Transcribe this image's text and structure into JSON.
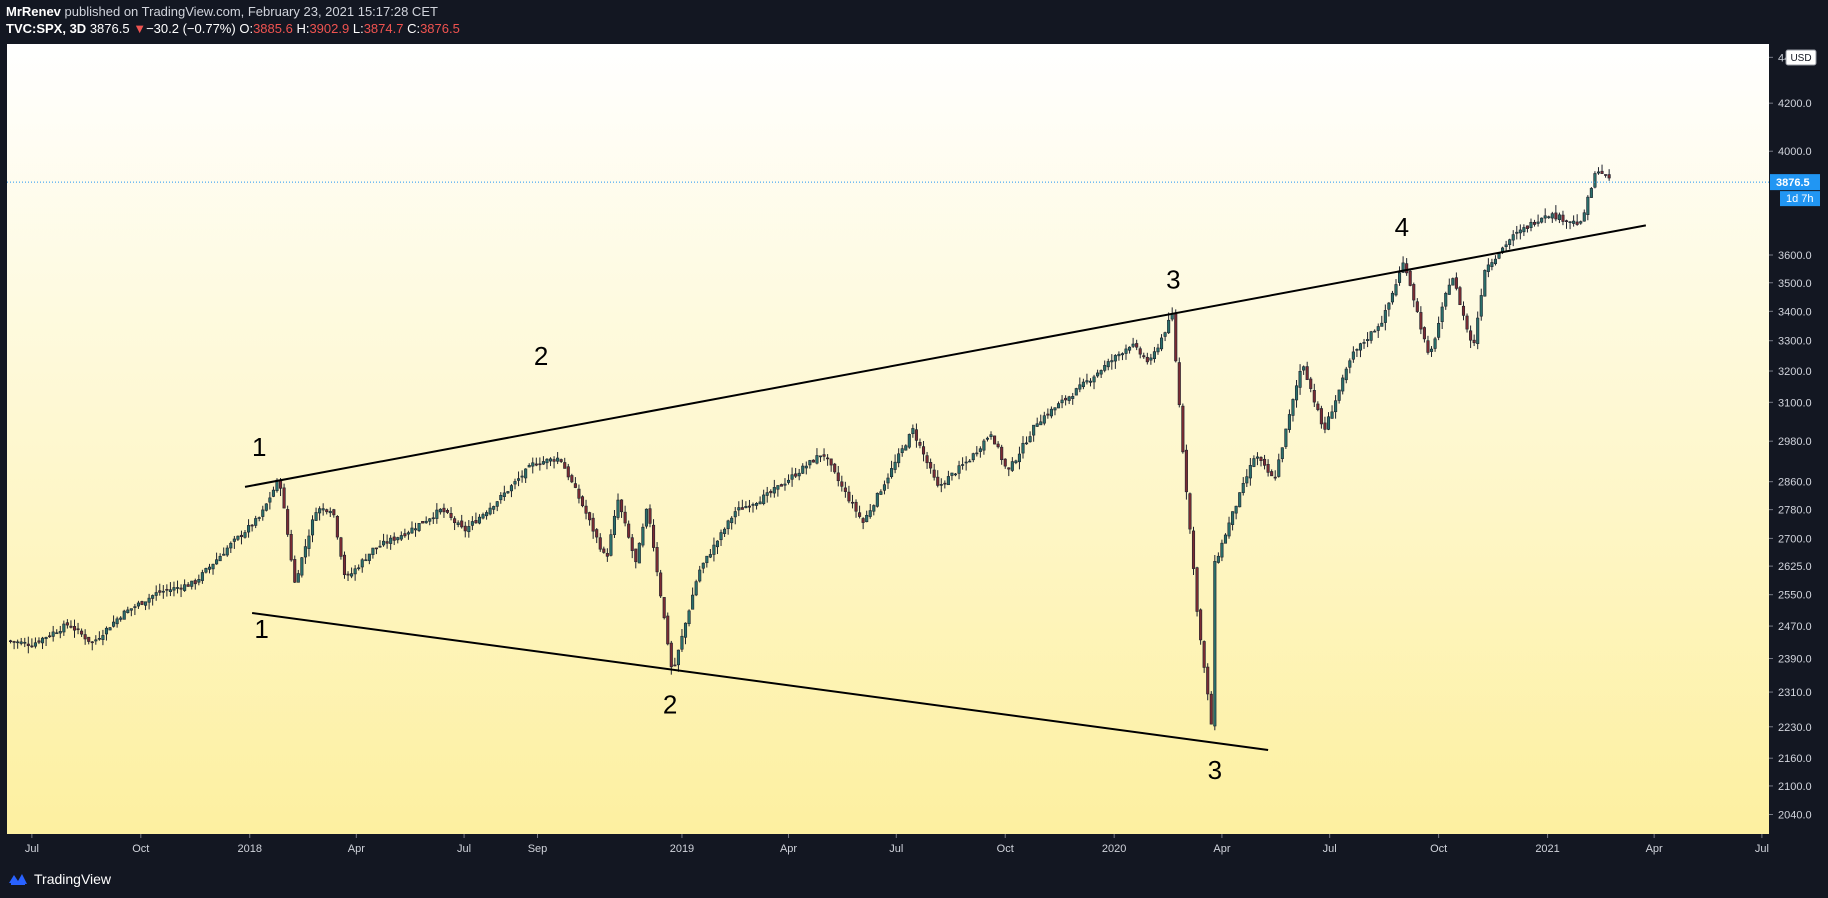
{
  "header": {
    "author": "MrRenev",
    "published_text": "published on TradingView.com, February 23, 2021 15:17:28 CET",
    "symbol": "TVC:SPX, 3D",
    "last": "3876.5",
    "change_arrow": "▼",
    "change": "−30.2 (−0.77%)",
    "o_label": "O:",
    "o_value": "3885.6",
    "h_label": "H:",
    "h_value": "3902.9",
    "l_label": "L:",
    "l_value": "3874.7",
    "c_label": "C:",
    "c_value": "3876.5"
  },
  "footer": {
    "brand": "TradingView"
  },
  "colors": {
    "up": "#26a69a",
    "down": "#ef5350",
    "candle_body_down": "#7a2b33",
    "candle_body_up": "#2a6f6a",
    "bg_top": "#ffffff",
    "bg_bottom": "#fdf0a0",
    "price_tag": "#2196f3",
    "axis_bg": "#131722",
    "axis_text": "#d1d4dc"
  },
  "chart_data": {
    "type": "candlestick",
    "symbol": "TVC:SPX",
    "interval": "3D",
    "y_scale": "log",
    "ylim": [
      2000,
      4460
    ],
    "y_ticks": [
      "2040.0",
      "2100.0",
      "2160.0",
      "2230.0",
      "2310.0",
      "2390.0",
      "2470.0",
      "2550.0",
      "2625.0",
      "2700.0",
      "2780.0",
      "2860.0",
      "2980.0",
      "3100.0",
      "3200.0",
      "3300.0",
      "3400.0",
      "3500.0",
      "3600.0",
      "4000.0",
      "4200.0",
      "4400.0"
    ],
    "currency": "USD",
    "last_price": "3876.5",
    "countdown": "1d 7h",
    "x_range": [
      "2017-06-10",
      "2021-07-07"
    ],
    "x_ticks": [
      {
        "label": "Jul",
        "date": "2017-07-01"
      },
      {
        "label": "Oct",
        "date": "2017-10-01"
      },
      {
        "label": "2018",
        "date": "2018-01-01"
      },
      {
        "label": "Apr",
        "date": "2018-04-01"
      },
      {
        "label": "Jul",
        "date": "2018-07-01"
      },
      {
        "label": "Sep",
        "date": "2018-09-01"
      },
      {
        "label": "2019",
        "date": "2019-01-01"
      },
      {
        "label": "Apr",
        "date": "2019-04-01"
      },
      {
        "label": "Jul",
        "date": "2019-07-01"
      },
      {
        "label": "Oct",
        "date": "2019-10-01"
      },
      {
        "label": "2020",
        "date": "2020-01-01"
      },
      {
        "label": "Apr",
        "date": "2020-04-01"
      },
      {
        "label": "Jul",
        "date": "2020-07-01"
      },
      {
        "label": "Oct",
        "date": "2020-10-01"
      },
      {
        "label": "2021",
        "date": "2021-01-01"
      },
      {
        "label": "Apr",
        "date": "2021-04-01"
      },
      {
        "label": "Jul",
        "date": "2021-07-01"
      }
    ],
    "series_anchors": [
      {
        "date": "2017-06-10",
        "close": 2433
      },
      {
        "date": "2017-07-01",
        "close": 2425
      },
      {
        "date": "2017-08-01",
        "close": 2475
      },
      {
        "date": "2017-08-21",
        "close": 2428
      },
      {
        "date": "2017-09-15",
        "close": 2500
      },
      {
        "date": "2017-10-15",
        "close": 2555
      },
      {
        "date": "2017-11-15",
        "close": 2580
      },
      {
        "date": "2017-12-15",
        "close": 2680
      },
      {
        "date": "2018-01-10",
        "close": 2760
      },
      {
        "date": "2018-01-26",
        "close": 2872
      },
      {
        "date": "2018-02-08",
        "close": 2581
      },
      {
        "date": "2018-02-26",
        "close": 2780
      },
      {
        "date": "2018-03-12",
        "close": 2783
      },
      {
        "date": "2018-03-23",
        "close": 2588
      },
      {
        "date": "2018-04-15",
        "close": 2670
      },
      {
        "date": "2018-05-15",
        "close": 2720
      },
      {
        "date": "2018-06-12",
        "close": 2780
      },
      {
        "date": "2018-07-01",
        "close": 2720
      },
      {
        "date": "2018-08-01",
        "close": 2815
      },
      {
        "date": "2018-08-29",
        "close": 2914
      },
      {
        "date": "2018-09-20",
        "close": 2930
      },
      {
        "date": "2018-10-10",
        "close": 2785
      },
      {
        "date": "2018-10-29",
        "close": 2641
      },
      {
        "date": "2018-11-08",
        "close": 2806
      },
      {
        "date": "2018-11-23",
        "close": 2633
      },
      {
        "date": "2018-12-03",
        "close": 2790
      },
      {
        "date": "2018-12-24",
        "close": 2351
      },
      {
        "date": "2019-01-15",
        "close": 2610
      },
      {
        "date": "2019-02-15",
        "close": 2775
      },
      {
        "date": "2019-03-15",
        "close": 2822
      },
      {
        "date": "2019-04-30",
        "close": 2945
      },
      {
        "date": "2019-05-15",
        "close": 2850
      },
      {
        "date": "2019-06-03",
        "close": 2744
      },
      {
        "date": "2019-07-15",
        "close": 3014
      },
      {
        "date": "2019-08-05",
        "close": 2844
      },
      {
        "date": "2019-09-01",
        "close": 2926
      },
      {
        "date": "2019-09-19",
        "close": 3006
      },
      {
        "date": "2019-10-03",
        "close": 2887
      },
      {
        "date": "2019-10-28",
        "close": 3039
      },
      {
        "date": "2019-12-01",
        "close": 3140
      },
      {
        "date": "2020-01-15",
        "close": 3289
      },
      {
        "date": "2020-01-31",
        "close": 3225
      },
      {
        "date": "2020-02-19",
        "close": 3386
      },
      {
        "date": "2020-02-28",
        "close": 2954
      },
      {
        "date": "2020-03-12",
        "close": 2480
      },
      {
        "date": "2020-03-23",
        "close": 2237
      },
      {
        "date": "2020-03-26",
        "close": 2630
      },
      {
        "date": "2020-04-08",
        "close": 2750
      },
      {
        "date": "2020-04-29",
        "close": 2939
      },
      {
        "date": "2020-05-15",
        "close": 2863
      },
      {
        "date": "2020-06-08",
        "close": 3232
      },
      {
        "date": "2020-06-26",
        "close": 3009
      },
      {
        "date": "2020-07-20",
        "close": 3251
      },
      {
        "date": "2020-08-15",
        "close": 3372
      },
      {
        "date": "2020-09-02",
        "close": 3580
      },
      {
        "date": "2020-09-23",
        "close": 3237
      },
      {
        "date": "2020-10-12",
        "close": 3534
      },
      {
        "date": "2020-10-30",
        "close": 3270
      },
      {
        "date": "2020-11-09",
        "close": 3550
      },
      {
        "date": "2020-12-01",
        "close": 3662
      },
      {
        "date": "2020-12-31",
        "close": 3756
      },
      {
        "date": "2021-01-29",
        "close": 3714
      },
      {
        "date": "2021-02-12",
        "close": 3934
      },
      {
        "date": "2021-02-23",
        "close": 3876
      }
    ],
    "trendlines": [
      {
        "name": "upper",
        "p1": {
          "date": "2017-12-28",
          "price": 2845
        },
        "p2": {
          "date": "2021-03-25",
          "price": 3710
        }
      },
      {
        "name": "lower",
        "p1": {
          "date": "2018-01-03",
          "price": 2503
        },
        "p2": {
          "date": "2020-05-10",
          "price": 2178
        }
      }
    ],
    "annotations": [
      {
        "text": "1",
        "date": "2018-01-09",
        "price": 2935
      },
      {
        "text": "2",
        "date": "2018-09-04",
        "price": 3220
      },
      {
        "text": "3",
        "date": "2020-02-20",
        "price": 3480
      },
      {
        "text": "4",
        "date": "2020-08-31",
        "price": 3670
      },
      {
        "text": "1",
        "date": "2018-01-11",
        "price": 2440
      },
      {
        "text": "2",
        "date": "2018-12-22",
        "price": 2260
      },
      {
        "text": "3",
        "date": "2020-03-26",
        "price": 2115
      }
    ]
  }
}
